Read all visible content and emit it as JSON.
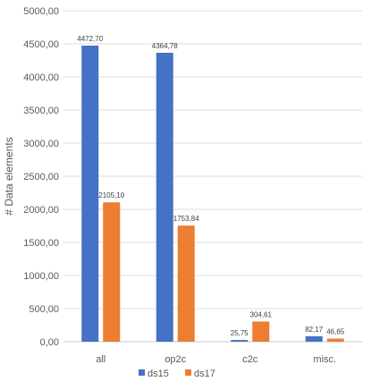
{
  "chart_data": {
    "type": "bar",
    "title": "",
    "xlabel": "",
    "ylabel": "# Data elements",
    "ylim": [
      0,
      5000
    ],
    "yticks": [
      "0,00",
      "500,00",
      "1000,00",
      "1500,00",
      "2000,00",
      "2500,00",
      "3000,00",
      "3500,00",
      "4000,00",
      "4500,00",
      "5000,00"
    ],
    "categories": [
      "all",
      "op2c",
      "c2c",
      "misc."
    ],
    "grid": true,
    "legend_position": "bottom",
    "series": [
      {
        "name": "ds15",
        "color": "#4472c4",
        "values": [
          4472.7,
          4364.78,
          25.75,
          82.17
        ],
        "labels": [
          "4472,70",
          "4364,78",
          "25,75",
          "82,17"
        ]
      },
      {
        "name": "ds17",
        "color": "#ed7d31",
        "values": [
          2105.1,
          1753.84,
          304.61,
          46.65
        ],
        "labels": [
          "2105,10",
          "1753,84",
          "304,61",
          "46,65"
        ]
      }
    ]
  }
}
